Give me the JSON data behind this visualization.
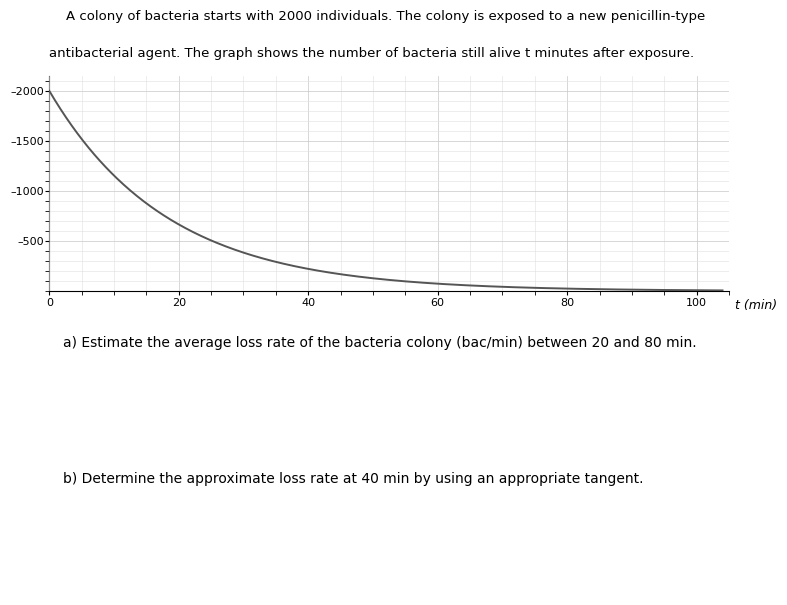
{
  "title_line1": "    A colony of bacteria starts with 2000 individuals. The colony is exposed to a new penicillin-type",
  "title_line2": "antibacterial agent. The graph shows the number of bacteria still alive t minutes after exposure.",
  "xlabel": "t (min)",
  "xlim": [
    0,
    105
  ],
  "ylim": [
    0,
    2150
  ],
  "xticks": [
    0,
    20,
    40,
    60,
    80,
    100
  ],
  "yticks": [
    500,
    1000,
    1500,
    2000
  ],
  "curve_color": "#555555",
  "grid_color": "#c8c8c8",
  "grid_color2": "#e0e0e0",
  "decay_rate": 0.055,
  "initial": 2000,
  "t_max": 104,
  "question_a": "a) Estimate the average loss rate of the bacteria colony (bac/min) between 20 and 80 min.",
  "question_b": "b) Determine the approximate loss rate at 40 min by using an appropriate tangent.",
  "fig_width": 7.08,
  "fig_height": 6.16,
  "title_fontsize": 9.5,
  "axis_label_fontsize": 9,
  "tick_fontsize": 8,
  "question_fontsize": 10
}
